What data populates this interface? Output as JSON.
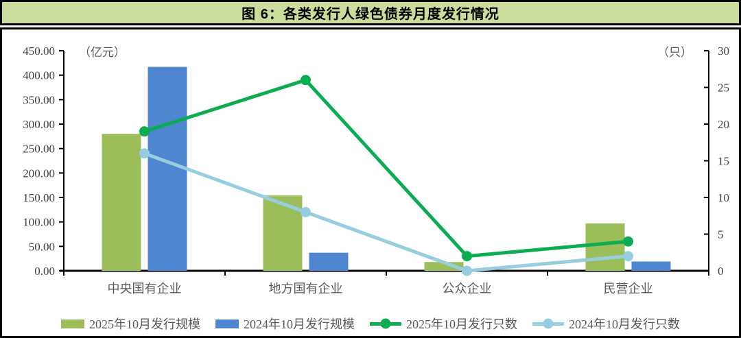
{
  "title": "图 6：各类发行人绿色债券月度发行情况",
  "colors": {
    "title_bar_bg": "#CBDD9B",
    "border": "#000000",
    "axis_text": "#3f3f3f",
    "label_text": "#595959"
  },
  "chart_data": {
    "type": "bar",
    "combo": "bar+line",
    "title": "图 6：各类发行人绿色债券月度发行情况",
    "categories": [
      "中央国有企业",
      "地方国有企业",
      "公众企业",
      "民营企业"
    ],
    "bar_series": [
      {
        "name": "2025年10月发行规模",
        "axis": "left",
        "color": "#9CBE5A",
        "values": [
          280,
          154,
          18,
          97
        ]
      },
      {
        "name": "2024年10月发行规模",
        "axis": "left",
        "color": "#4E86D0",
        "values": [
          417,
          37,
          0,
          19
        ]
      }
    ],
    "line_series": [
      {
        "name": "2025年10月发行只数",
        "axis": "right",
        "color": "#0CAD52",
        "values": [
          19,
          26,
          2,
          4
        ]
      },
      {
        "name": "2024年10月发行只数",
        "axis": "right",
        "color": "#96CEE0",
        "values": [
          16,
          8,
          0,
          2
        ]
      }
    ],
    "left_axis": {
      "label": "（亿元）",
      "min": 0,
      "max": 450,
      "step": 50,
      "decimals": 2
    },
    "right_axis": {
      "label": "（只）",
      "min": 0,
      "max": 30,
      "step": 5,
      "decimals": 0
    },
    "grid": false,
    "legend_position": "bottom"
  }
}
